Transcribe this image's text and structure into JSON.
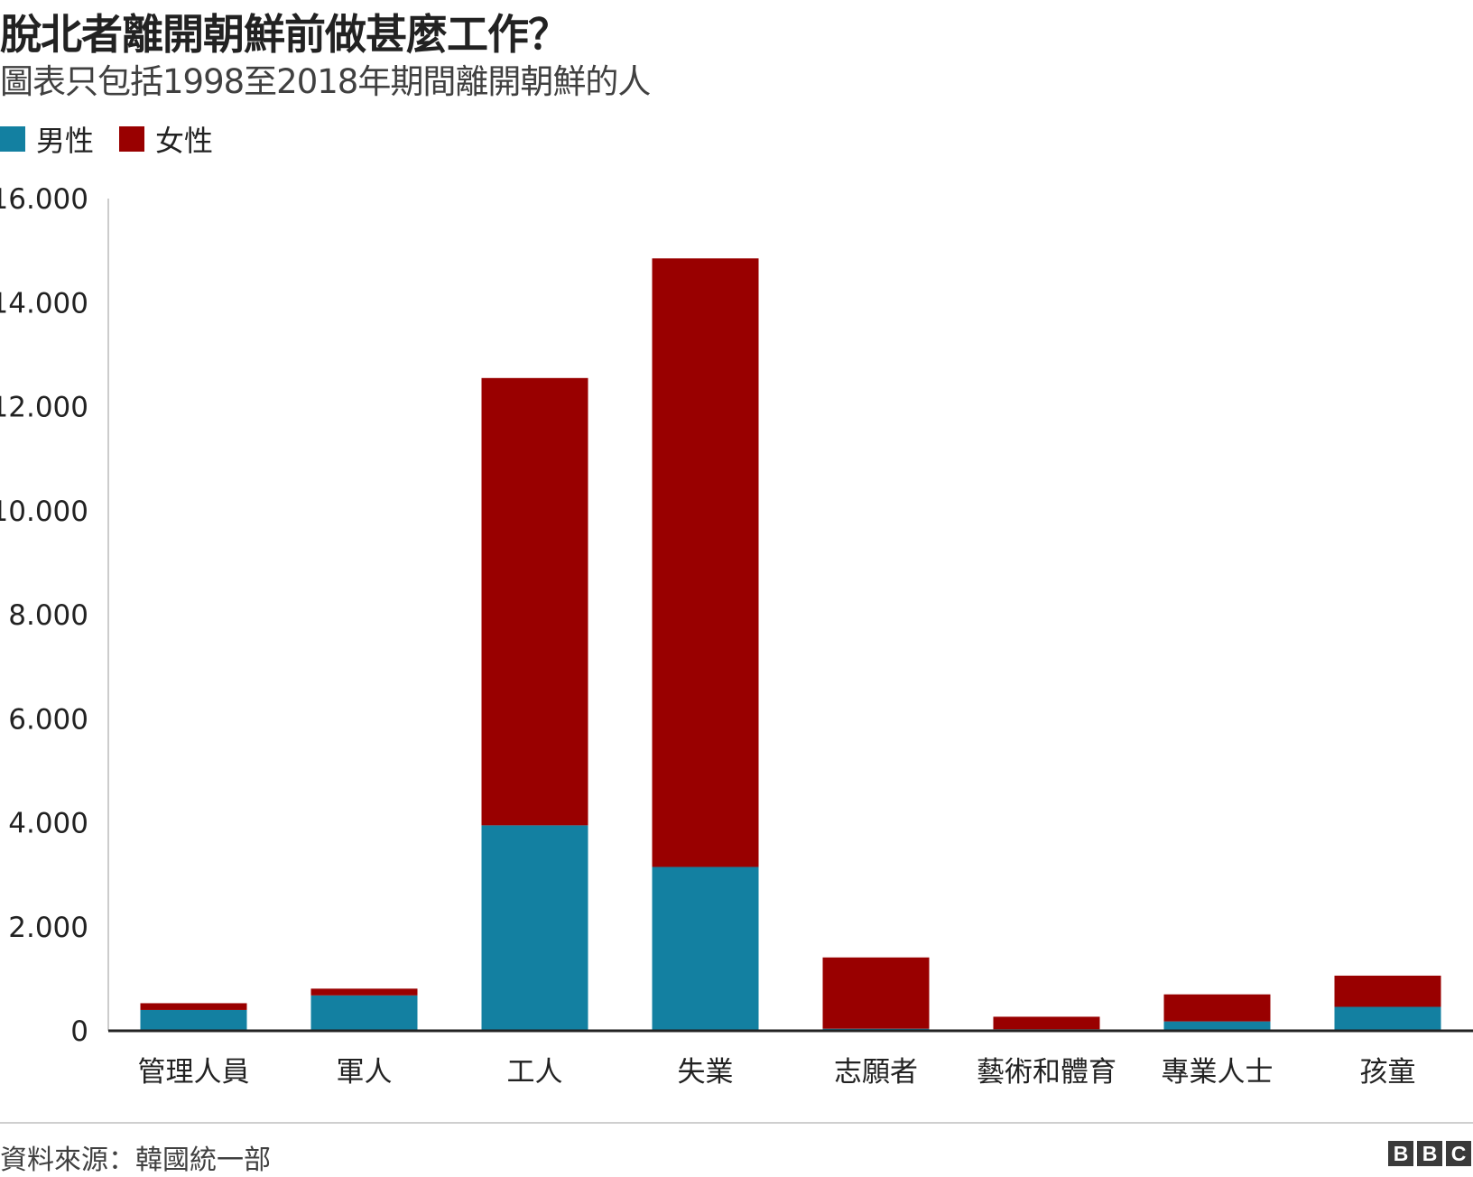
{
  "title": "脫北者離開朝鮮前做甚麼工作？",
  "subtitle": "圖表只包括1998至2018年期間離開朝鮮的人",
  "legend": [
    {
      "label": "男性",
      "color": "#1380a1"
    },
    {
      "label": "女性",
      "color": "#990000"
    }
  ],
  "source": "資料來源：韓國統一部",
  "logo": [
    "B",
    "B",
    "C"
  ],
  "chart_data": {
    "type": "bar",
    "stacked": true,
    "categories": [
      "管理人員",
      "軍人",
      "工人",
      "失業",
      "志願者",
      "藝術和體育",
      "專業人士",
      "孩童"
    ],
    "series": [
      {
        "name": "男性",
        "color": "#1380a1",
        "values": [
          400,
          680,
          3950,
          3150,
          40,
          30,
          180,
          460
        ]
      },
      {
        "name": "女性",
        "color": "#990000",
        "values": [
          130,
          130,
          8600,
          11700,
          1370,
          240,
          520,
          600
        ]
      }
    ],
    "ylim": [
      0,
      16000
    ],
    "yticks": [
      0,
      2000,
      4000,
      6000,
      8000,
      10000,
      12000,
      14000,
      16000
    ],
    "ytick_labels": [
      "0",
      "2.000",
      "4.000",
      "6.000",
      "8.000",
      "10.000",
      "12.000",
      "14.000",
      "16.000"
    ],
    "grid": false,
    "legend_position": "top-left",
    "xlabel": "",
    "ylabel": ""
  }
}
